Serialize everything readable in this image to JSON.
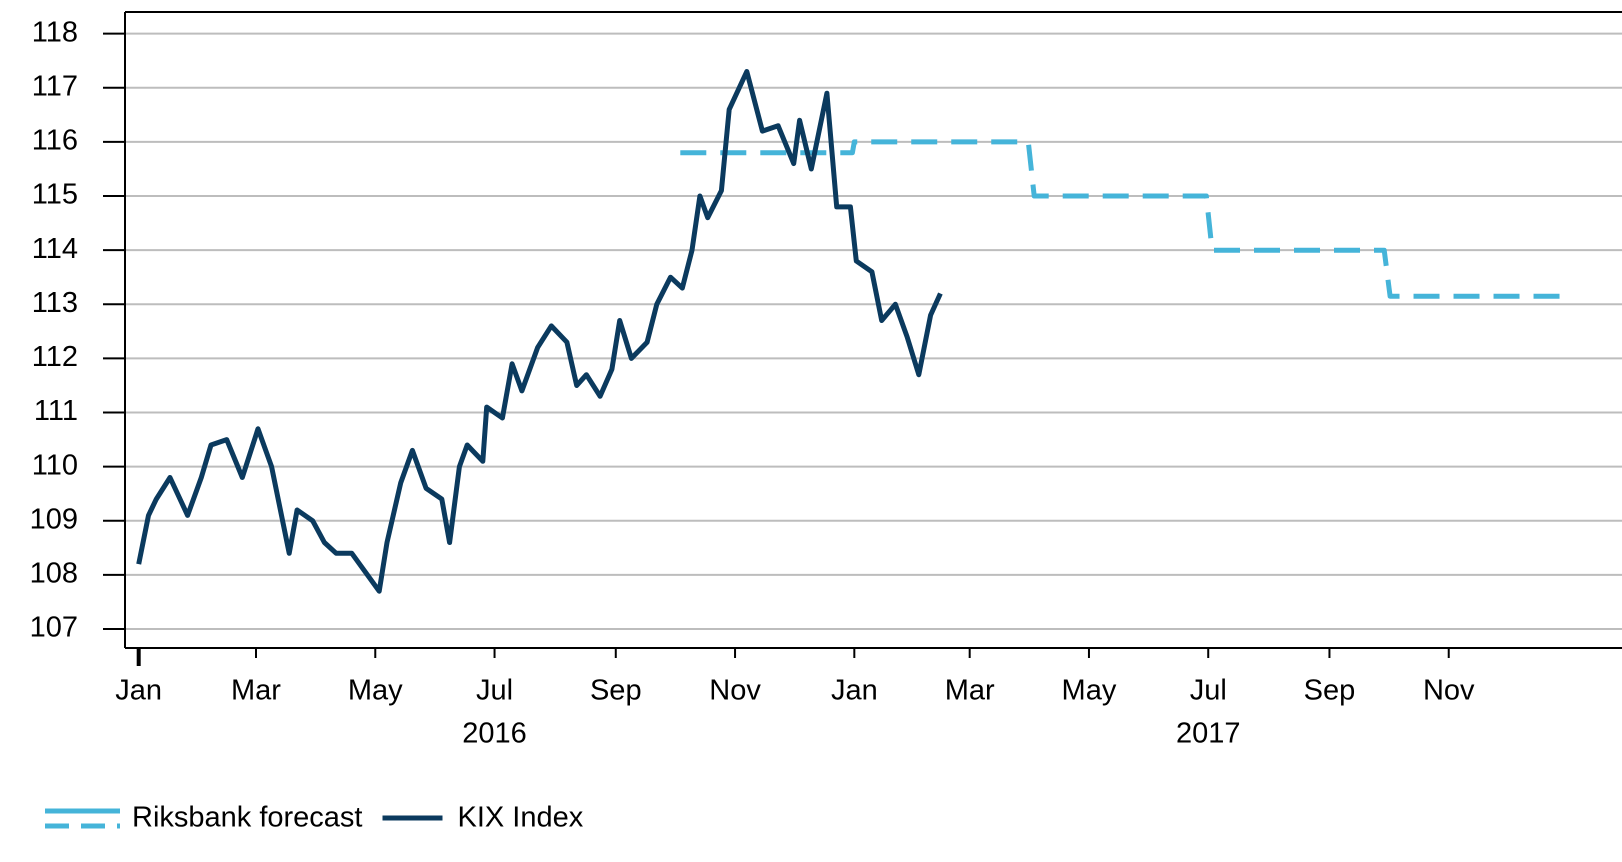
{
  "chart_data": {
    "type": "line",
    "xlim": [
      "2015-12-25",
      "2018-01-01"
    ],
    "ylim": [
      106.65,
      118.4
    ],
    "yticks": [
      107,
      108,
      109,
      110,
      111,
      112,
      113,
      114,
      115,
      116,
      117,
      118
    ],
    "xticks": [
      {
        "value": "2016-01-01",
        "label": "Jan"
      },
      {
        "value": "2016-03-01",
        "label": "Mar"
      },
      {
        "value": "2016-05-01",
        "label": "May"
      },
      {
        "value": "2016-07-01",
        "label": "Jul"
      },
      {
        "value": "2016-09-01",
        "label": "Sep"
      },
      {
        "value": "2016-11-01",
        "label": "Nov"
      },
      {
        "value": "2017-01-01",
        "label": "Jan"
      },
      {
        "value": "2017-03-01",
        "label": "Mar"
      },
      {
        "value": "2017-05-01",
        "label": "May"
      },
      {
        "value": "2017-07-01",
        "label": "Jul"
      },
      {
        "value": "2017-09-01",
        "label": "Sep"
      },
      {
        "value": "2017-11-01",
        "label": "Nov"
      }
    ],
    "year_labels": [
      {
        "value": "2016-07-01",
        "label": "2016"
      },
      {
        "value": "2017-07-01",
        "label": "2017"
      }
    ],
    "grid": true,
    "legend": "bottom",
    "series": [
      {
        "name": "Riksbank forecast",
        "color": "#45b4d9",
        "dashed": true,
        "x": [
          "2016-10-04",
          "2016-12-31",
          "2017-01-01",
          "2017-03-31",
          "2017-04-03",
          "2017-06-30",
          "2017-07-03",
          "2017-09-29",
          "2017-10-02",
          "2017-12-31"
        ],
        "values": [
          115.8,
          115.8,
          116.0,
          116.0,
          115.0,
          115.0,
          114.0,
          114.0,
          113.15,
          113.15
        ]
      },
      {
        "name": "KIX Index",
        "color": "#0b3a5e",
        "dashed": false,
        "x": [
          "2016-01-01",
          "2016-01-06",
          "2016-01-10",
          "2016-01-17",
          "2016-01-26",
          "2016-02-02",
          "2016-02-07",
          "2016-02-15",
          "2016-02-23",
          "2016-03-02",
          "2016-03-09",
          "2016-03-18",
          "2016-03-22",
          "2016-03-30",
          "2016-04-05",
          "2016-04-11",
          "2016-04-19",
          "2016-05-03",
          "2016-05-07",
          "2016-05-14",
          "2016-05-20",
          "2016-05-27",
          "2016-06-04",
          "2016-06-08",
          "2016-06-13",
          "2016-06-17",
          "2016-06-25",
          "2016-06-27",
          "2016-07-05",
          "2016-07-10",
          "2016-07-15",
          "2016-07-23",
          "2016-07-30",
          "2016-08-07",
          "2016-08-12",
          "2016-08-17",
          "2016-08-24",
          "2016-08-30",
          "2016-09-03",
          "2016-09-09",
          "2016-09-17",
          "2016-09-22",
          "2016-09-29",
          "2016-10-05",
          "2016-10-10",
          "2016-10-14",
          "2016-10-18",
          "2016-10-25",
          "2016-10-29",
          "2016-11-07",
          "2016-11-15",
          "2016-11-23",
          "2016-12-01",
          "2016-12-04",
          "2016-12-10",
          "2016-12-18",
          "2016-12-23",
          "2016-12-30",
          "2017-01-02",
          "2017-01-10",
          "2017-01-15",
          "2017-01-22",
          "2017-01-28",
          "2017-02-03",
          "2017-02-09",
          "2017-02-14"
        ],
        "values": [
          108.2,
          109.1,
          109.4,
          109.8,
          109.1,
          109.8,
          110.4,
          110.5,
          109.8,
          110.7,
          110.0,
          108.4,
          109.2,
          109.0,
          108.6,
          108.4,
          108.4,
          107.7,
          108.6,
          109.7,
          110.3,
          109.6,
          109.4,
          108.6,
          110.0,
          110.4,
          110.1,
          111.1,
          110.9,
          111.9,
          111.4,
          112.2,
          112.6,
          112.3,
          111.5,
          111.7,
          111.3,
          111.8,
          112.7,
          112.0,
          112.3,
          113.0,
          113.5,
          113.3,
          114.0,
          115.0,
          114.6,
          115.1,
          116.6,
          117.3,
          116.2,
          116.3,
          115.6,
          116.4,
          115.5,
          116.9,
          114.8,
          114.8,
          113.8,
          113.6,
          112.7,
          113.0,
          112.4,
          111.7,
          112.8,
          113.2
        ]
      }
    ]
  }
}
